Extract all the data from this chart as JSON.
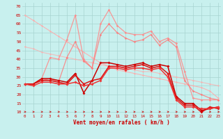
{
  "bg_color": "#c8f0ee",
  "grid_color": "#a8d4d0",
  "xlabel": "Vent moyen/en rafales ( km/h )",
  "ylabel_ticks": [
    10,
    15,
    20,
    25,
    30,
    35,
    40,
    45,
    50,
    55,
    60,
    65,
    70
  ],
  "xlim": [
    -0.3,
    23.3
  ],
  "ylim": [
    9,
    72
  ],
  "series": [
    {
      "color": "#ffaaaa",
      "alpha": 0.85,
      "lw": 0.8,
      "marker": "D",
      "ms": 1.5,
      "x": [
        0,
        1,
        2,
        3,
        4,
        5,
        6,
        7,
        8,
        9,
        10,
        11,
        12,
        13,
        14,
        15,
        16,
        17,
        18,
        19,
        20,
        21,
        22,
        23
      ],
      "y": [
        65,
        62,
        59,
        56,
        53,
        50,
        47,
        44,
        41,
        38,
        36,
        34,
        33,
        32,
        31,
        30,
        29,
        28,
        27,
        26,
        25,
        24,
        22,
        18
      ]
    },
    {
      "color": "#ffaaaa",
      "alpha": 0.7,
      "lw": 0.8,
      "marker": "D",
      "ms": 1.5,
      "x": [
        0,
        1,
        2,
        3,
        4,
        5,
        6,
        7,
        8,
        9,
        10,
        11,
        12,
        13,
        14,
        15,
        16,
        17,
        18,
        19,
        20,
        21,
        22,
        23
      ],
      "y": [
        47,
        46,
        44,
        43,
        42,
        41,
        40,
        39,
        38,
        37,
        36,
        35,
        35,
        34,
        33,
        33,
        32,
        31,
        30,
        29,
        28,
        27,
        26,
        25
      ]
    },
    {
      "color": "#ff8888",
      "alpha": 0.85,
      "lw": 0.9,
      "marker": "D",
      "ms": 1.8,
      "x": [
        0,
        1,
        2,
        3,
        4,
        5,
        6,
        7,
        8,
        9,
        10,
        11,
        12,
        13,
        14,
        15,
        16,
        17,
        18,
        19,
        20,
        21,
        22,
        23
      ],
      "y": [
        26,
        26,
        29,
        41,
        40,
        51,
        65,
        40,
        35,
        60,
        68,
        59,
        55,
        54,
        54,
        56,
        50,
        52,
        49,
        33,
        18,
        17,
        17,
        17
      ]
    },
    {
      "color": "#ff7777",
      "alpha": 0.8,
      "lw": 0.9,
      "marker": "D",
      "ms": 1.8,
      "x": [
        0,
        1,
        2,
        3,
        4,
        5,
        6,
        7,
        8,
        9,
        10,
        11,
        12,
        13,
        14,
        15,
        16,
        17,
        18,
        19,
        20,
        21,
        22,
        23
      ],
      "y": [
        26,
        26,
        28,
        29,
        27,
        41,
        50,
        39,
        35,
        54,
        60,
        55,
        52,
        50,
        51,
        54,
        48,
        51,
        47,
        28,
        22,
        20,
        18,
        17
      ]
    },
    {
      "color": "#cc0000",
      "alpha": 1.0,
      "lw": 1.1,
      "marker": "D",
      "ms": 2.0,
      "x": [
        0,
        1,
        2,
        3,
        4,
        5,
        6,
        7,
        8,
        9,
        10,
        11,
        12,
        13,
        14,
        15,
        16,
        17,
        18,
        19,
        20,
        21,
        22,
        23
      ],
      "y": [
        26,
        26,
        29,
        29,
        28,
        27,
        32,
        21,
        28,
        38,
        38,
        37,
        36,
        37,
        38,
        36,
        37,
        36,
        19,
        15,
        15,
        11,
        12,
        13
      ]
    },
    {
      "color": "#dd1111",
      "alpha": 1.0,
      "lw": 1.1,
      "marker": "D",
      "ms": 2.0,
      "x": [
        0,
        1,
        2,
        3,
        4,
        5,
        6,
        7,
        8,
        9,
        10,
        11,
        12,
        13,
        14,
        15,
        16,
        17,
        18,
        19,
        20,
        21,
        22,
        23
      ],
      "y": [
        26,
        26,
        28,
        28,
        27,
        26,
        31,
        26,
        28,
        29,
        36,
        36,
        35,
        36,
        37,
        35,
        36,
        32,
        18,
        14,
        14,
        10,
        13,
        12
      ]
    },
    {
      "color": "#ee3333",
      "alpha": 1.0,
      "lw": 1.1,
      "marker": "D",
      "ms": 2.0,
      "x": [
        0,
        1,
        2,
        3,
        4,
        5,
        6,
        7,
        8,
        9,
        10,
        11,
        12,
        13,
        14,
        15,
        16,
        17,
        18,
        19,
        20,
        21,
        22,
        23
      ],
      "y": [
        26,
        25,
        27,
        27,
        26,
        26,
        27,
        25,
        26,
        28,
        35,
        35,
        34,
        35,
        35,
        34,
        35,
        30,
        17,
        13,
        13,
        12,
        12,
        13
      ]
    }
  ]
}
